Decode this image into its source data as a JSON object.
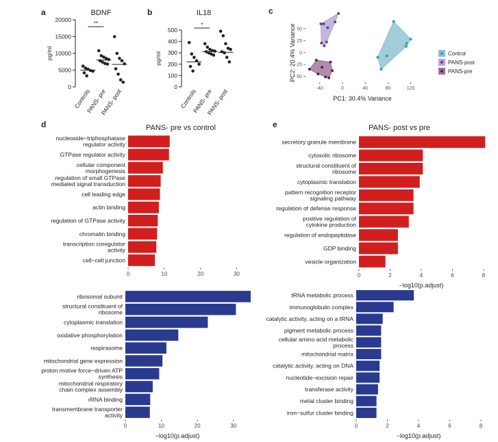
{
  "colors": {
    "red_bar": "#d11f1f",
    "blue_bar": "#2a3a8f",
    "control": "#2aa6a3",
    "control_fill": "#8fbfcf",
    "pans_post": "#6a3fa0",
    "pans_post_fill": "#b3a6d3",
    "pans_pre": "#5a2050",
    "pans_pre_fill": "#9a7296",
    "dot": "#222222"
  },
  "chart_data": [
    {
      "id": "a",
      "panel_label": "a",
      "type": "scatter",
      "title": "BDNF",
      "ylabel": "pg/ml",
      "categories": [
        "Controls",
        "PANS- pre",
        "PANS- post"
      ],
      "yticks": [
        "0",
        "5000",
        "10000",
        "15000",
        "20000"
      ],
      "ylim": [
        0,
        20000
      ],
      "significance": "**",
      "groups": [
        {
          "name": "Controls",
          "values": [
            6200,
            5600,
            5300,
            4900,
            4700,
            4200,
            3300
          ]
        },
        {
          "name": "PANS- pre",
          "values": [
            10800,
            9300,
            8900,
            8500,
            8200,
            7800,
            7400,
            7000,
            6800
          ]
        },
        {
          "name": "PANS- post",
          "values": [
            15000,
            10000,
            8500,
            7800,
            6900,
            5400,
            3800,
            2100,
            1400
          ]
        }
      ],
      "medians": [
        5000,
        8000,
        6700
      ]
    },
    {
      "id": "b",
      "panel_label": "b",
      "type": "scatter",
      "title": "IL18",
      "ylabel": "pg/ml",
      "categories": [
        "Controls",
        "PANS- pre",
        "PANS- post"
      ],
      "yticks": [
        "0",
        "100",
        "200",
        "300",
        "400",
        "500"
      ],
      "ylim": [
        0,
        500
      ],
      "significance": "*",
      "groups": [
        {
          "name": "Controls",
          "values": [
            390,
            290,
            260,
            230,
            200,
            180,
            140
          ]
        },
        {
          "name": "PANS- pre",
          "values": [
            380,
            350,
            330,
            320,
            315,
            310,
            300,
            290,
            280
          ]
        },
        {
          "name": "PANS- post",
          "values": [
            490,
            450,
            380,
            340,
            330,
            310,
            300,
            260,
            220
          ]
        }
      ],
      "medians": [
        220,
        310,
        305
      ]
    },
    {
      "id": "c",
      "panel_label": "c",
      "type": "scatter",
      "title": "",
      "xlabel": "PC1: 30.4% Variance",
      "ylabel": "PC2: 20.4% Variance",
      "xticks": [
        "-40",
        "0",
        "40",
        "80",
        "120"
      ],
      "yticks": [
        "-50",
        "-25",
        "0",
        "25",
        "50"
      ],
      "xlim": [
        -65,
        135
      ],
      "ylim": [
        -62,
        90
      ],
      "legend_position": "right",
      "series": [
        {
          "name": "Control",
          "points": [
            [
              68,
              -35
            ],
            [
              62,
              -10
            ],
            [
              78,
              -7
            ],
            [
              90,
              65
            ],
            [
              112,
              13
            ],
            [
              113,
              19
            ],
            [
              120,
              28
            ]
          ]
        },
        {
          "name": "PANS-post",
          "points": [
            [
              -38,
              60
            ],
            [
              -33,
              60
            ],
            [
              -26,
              52
            ],
            [
              -13,
              64
            ],
            [
              -7,
              82
            ],
            [
              -37,
              20
            ],
            [
              -32,
              14
            ],
            [
              -28,
              22
            ]
          ]
        },
        {
          "name": "PANS-pre",
          "points": [
            [
              -58,
              -35
            ],
            [
              -46,
              -16
            ],
            [
              -43,
              -45
            ],
            [
              -36,
              -31
            ],
            [
              -30,
              -51
            ],
            [
              -24,
              -53
            ],
            [
              -21,
              -20
            ],
            [
              -18,
              -38
            ]
          ]
        }
      ]
    },
    {
      "id": "d_top",
      "panel_label": "d",
      "type": "bar",
      "title": "PANS- pre vs control",
      "xlabel": "",
      "xticks": [
        "0",
        "10",
        "20",
        "30"
      ],
      "xlim": [
        0,
        35
      ],
      "color_key": "red_bar",
      "categories": [
        [
          "nucleoside−triphosphatase",
          "regulator activity"
        ],
        [
          "GTPase regulator activity"
        ],
        [
          "cellular component",
          "morphogenesis"
        ],
        [
          "regulation of small GTPase",
          "mediated signal transduction"
        ],
        [
          "cell leading edge"
        ],
        [
          "actin binding"
        ],
        [
          "regulation of GTPase activity"
        ],
        [
          "chromatin binding"
        ],
        [
          "transcription coregulator",
          "activity"
        ],
        [
          "cell−cell junction"
        ]
      ],
      "values": [
        11.5,
        11.3,
        9.6,
        9.0,
        8.8,
        8.5,
        8.2,
        8.0,
        7.8,
        7.4
      ]
    },
    {
      "id": "d_bottom",
      "panel_label": "",
      "type": "bar",
      "title": "",
      "xlabel": "−log10(p.adjust)",
      "xticks": [
        "0",
        "10",
        "20",
        "30"
      ],
      "xlim": [
        0,
        35
      ],
      "color_key": "blue_bar",
      "categories": [
        [
          "ribosomal subunit"
        ],
        [
          "structural constituent of",
          "ribosome"
        ],
        [
          "cytoplasmic translation"
        ],
        [
          "oxidative phosphorylation"
        ],
        [
          "respirasome"
        ],
        [
          "mitochondrial gene expression"
        ],
        [
          "proton motive force−driven ATP",
          "synthesis"
        ],
        [
          "mitochondrial respiratory",
          "chain complex assembly"
        ],
        [
          "rRNA binding"
        ],
        [
          "transmembrane transporter",
          "activity"
        ]
      ],
      "values": [
        34.8,
        30.7,
        22.9,
        14.7,
        11.4,
        10.3,
        9.4,
        7.6,
        6.9,
        6.8
      ]
    },
    {
      "id": "e_top",
      "panel_label": "e",
      "type": "bar",
      "title": "PANS- post vs pre",
      "xlabel": "−log10(p.adjust)",
      "xticks": [
        "0",
        "2",
        "4",
        "6",
        "8"
      ],
      "xlim": [
        0,
        8
      ],
      "color_key": "red_bar",
      "categories": [
        [
          "secretory granule membrane"
        ],
        [
          "cytosolic ribosome"
        ],
        [
          "structural constituent of",
          "ribosome"
        ],
        [
          "cytoplasmic translation"
        ],
        [
          "pattern recognition receptor",
          "signaling pathway"
        ],
        [
          "regulation of defense response"
        ],
        [
          "positive regulation of",
          "cytokine production"
        ],
        [
          "regulation of endopeptidase"
        ],
        [
          "GDP binding"
        ],
        [
          "vesicle organization"
        ]
      ],
      "values": [
        8.1,
        4.1,
        4.1,
        3.9,
        3.5,
        3.5,
        3.2,
        2.5,
        2.5,
        1.7
      ]
    },
    {
      "id": "e_bottom",
      "panel_label": "",
      "type": "bar",
      "title": "",
      "xlabel": "−log10(p.adjust)",
      "xticks": [
        "0",
        "2",
        "4",
        "6",
        "8"
      ],
      "xlim": [
        0,
        8
      ],
      "color_key": "blue_bar",
      "categories": [
        [
          "tRNA metabolic process"
        ],
        [
          "immunoglobulin complex"
        ],
        [
          "catalytic activity, acting on a tRNA"
        ],
        [
          "pigment metabolic process"
        ],
        [
          "cellular amino acid metabolic",
          "process"
        ],
        [
          "mitochondrial matrix"
        ],
        [
          "catalytic activity, acting on DNA"
        ],
        [
          "nucleotide−excision repair"
        ],
        [
          "transferase activity"
        ],
        [
          "metal cluster binding"
        ],
        [
          "iron−sulfur cluster binding"
        ]
      ],
      "values": [
        3.7,
        2.4,
        1.7,
        1.6,
        1.6,
        1.6,
        1.5,
        1.5,
        1.4,
        1.3,
        1.3
      ]
    }
  ]
}
